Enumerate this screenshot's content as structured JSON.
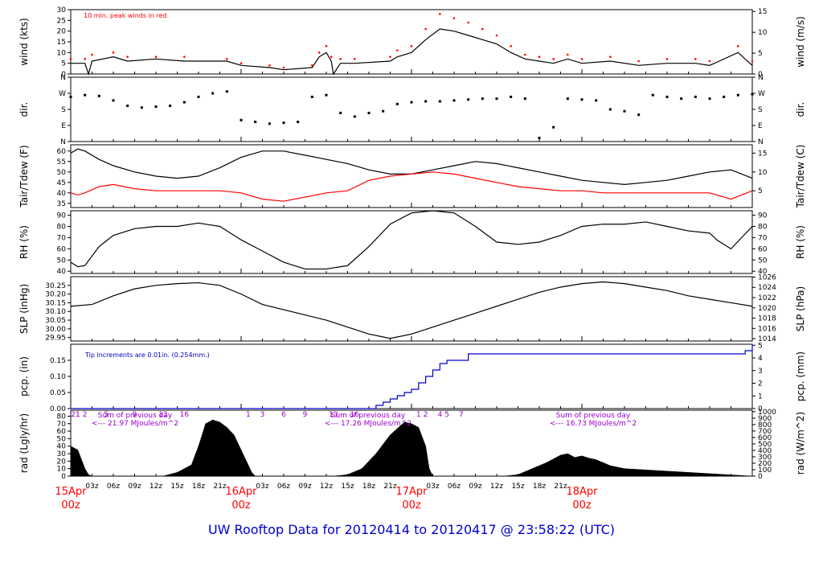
{
  "footer": {
    "title_prefix": "UW Rooftop Data for",
    "start": "20120414",
    "to": "to",
    "end": "20120417",
    "at": "@",
    "time": "23:58:22",
    "tz": "(UTC)"
  },
  "colors": {
    "peak": "#ff0000",
    "dew": "#ff0000",
    "precip": "#0000cc",
    "solar_note": "#9900cc",
    "day_label": "#ff0000",
    "title": "#0000cc"
  },
  "chart_data": [
    {
      "type": "line",
      "id": "wind",
      "ylabel": "wind (kts)",
      "ylabel_right": "wind (m/s)",
      "annotation": "10 min. peak winds in red",
      "yticks_left": [
        0,
        5,
        10,
        15,
        20,
        25,
        30
      ],
      "yticks_right": [
        0,
        5,
        10,
        15
      ],
      "ylim": [
        0,
        30
      ],
      "x_hours": [
        0,
        2,
        2.5,
        3,
        6,
        8,
        12,
        16,
        22,
        24,
        28,
        30,
        34,
        35,
        36,
        36.7,
        37,
        38,
        40,
        45,
        46,
        48,
        50,
        52,
        54,
        56,
        58,
        60,
        62,
        64,
        66,
        68,
        70,
        72,
        76,
        80,
        84,
        88,
        90,
        94,
        96
      ],
      "series": [
        {
          "name": "wind",
          "values": [
            5,
            5,
            0,
            6,
            8,
            6,
            7,
            6,
            6,
            4,
            3,
            2,
            3,
            8,
            10,
            6,
            0,
            5,
            5,
            6,
            8,
            10,
            16,
            21,
            20,
            18,
            16,
            14,
            10,
            7,
            6,
            5,
            7,
            5,
            6,
            4,
            5,
            5,
            4,
            10,
            4
          ]
        },
        {
          "name": "10 min. peak",
          "values": [
            7,
            7,
            0,
            9,
            10,
            8,
            8,
            8,
            7,
            5,
            4,
            3,
            4,
            10,
            13,
            8,
            0,
            7,
            7,
            8,
            11,
            13,
            21,
            28,
            26,
            24,
            21,
            18,
            13,
            9,
            8,
            7,
            9,
            7,
            8,
            6,
            7,
            7,
            6,
            13,
            6
          ]
        }
      ]
    },
    {
      "type": "scatter",
      "id": "dir",
      "ylabel": "dir.",
      "ylabel_right": "dir.",
      "ytick_labels": [
        "N",
        "W",
        "S",
        "E",
        "N"
      ],
      "ylim_deg": [
        0,
        360
      ],
      "x_hours": [
        0,
        2,
        4,
        6,
        8,
        10,
        12,
        14,
        16,
        18,
        20,
        22,
        24,
        26,
        28,
        30,
        32,
        34,
        36,
        38,
        40,
        42,
        44,
        46,
        48,
        50,
        52,
        54,
        56,
        58,
        60,
        62,
        64,
        66,
        68,
        70,
        72,
        74,
        76,
        78,
        80,
        82,
        84,
        86,
        88,
        90,
        92,
        94,
        96
      ],
      "values": [
        250,
        260,
        255,
        230,
        200,
        190,
        195,
        200,
        220,
        250,
        270,
        280,
        120,
        110,
        100,
        105,
        110,
        250,
        260,
        160,
        140,
        160,
        170,
        210,
        220,
        225,
        225,
        230,
        235,
        240,
        240,
        250,
        240,
        20,
        80,
        240,
        235,
        230,
        180,
        170,
        150,
        260,
        250,
        240,
        250,
        240,
        250,
        260,
        265
      ]
    },
    {
      "type": "line",
      "id": "temp",
      "ylabel": "Tair/Tdew (F)",
      "ylabel_right": "Tair/Tdew (C)",
      "yticks_left": [
        35,
        40,
        45,
        50,
        55,
        60
      ],
      "yticks_right": [
        5,
        10,
        15
      ],
      "ylim": [
        33,
        63
      ],
      "x_hours": [
        0,
        1,
        2,
        4,
        6,
        9,
        12,
        15,
        18,
        21,
        24,
        27,
        30,
        33,
        36,
        39,
        42,
        45,
        48,
        51,
        54,
        57,
        60,
        63,
        66,
        69,
        72,
        75,
        78,
        81,
        84,
        87,
        90,
        93,
        96
      ],
      "series": [
        {
          "name": "Tair",
          "values": [
            59,
            61,
            60,
            56,
            53,
            50,
            48,
            47,
            48,
            52,
            57,
            60,
            60,
            58,
            56,
            54,
            51,
            49,
            49,
            51,
            53,
            55,
            54,
            52,
            50,
            48,
            46,
            45,
            44,
            45,
            46,
            48,
            50,
            51,
            47
          ]
        },
        {
          "name": "Tdew",
          "values": [
            40,
            39,
            40,
            43,
            44,
            42,
            41,
            41,
            41,
            41,
            40,
            37,
            36,
            38,
            40,
            41,
            46,
            48,
            49,
            50,
            49,
            47,
            45,
            43,
            42,
            41,
            41,
            40,
            40,
            40,
            40,
            40,
            40,
            37,
            41
          ]
        }
      ]
    },
    {
      "type": "line",
      "id": "rh",
      "ylabel": "RH (%)",
      "ylabel_right": "RH (%)",
      "yticks_left": [
        40,
        50,
        60,
        70,
        80,
        90
      ],
      "yticks_right": [
        40,
        50,
        60,
        70,
        80,
        90
      ],
      "ylim": [
        38,
        94
      ],
      "x_hours": [
        0,
        1,
        2,
        4,
        6,
        9,
        12,
        15,
        18,
        21,
        24,
        27,
        30,
        33,
        36,
        39,
        42,
        45,
        48,
        51,
        54,
        57,
        60,
        63,
        66,
        69,
        72,
        75,
        78,
        81,
        84,
        87,
        90,
        91,
        93,
        96
      ],
      "series": [
        {
          "name": "RH",
          "values": [
            48,
            44,
            45,
            62,
            72,
            78,
            80,
            80,
            83,
            80,
            68,
            58,
            48,
            42,
            42,
            45,
            62,
            82,
            92,
            94,
            92,
            80,
            66,
            64,
            66,
            72,
            80,
            82,
            82,
            84,
            80,
            76,
            74,
            68,
            60,
            80
          ]
        }
      ]
    },
    {
      "type": "line",
      "id": "slp",
      "ylabel": "SLP (inHg)",
      "ylabel_right": "SLP (hPa)",
      "yticks_left": [
        29.95,
        30.0,
        30.05,
        30.1,
        30.15,
        30.2,
        30.25
      ],
      "yticks_right": [
        1014,
        1016,
        1018,
        1020,
        1022,
        1024,
        1026
      ],
      "ylim": [
        29.93,
        30.3
      ],
      "x_hours": [
        0,
        3,
        6,
        9,
        12,
        15,
        18,
        21,
        24,
        27,
        30,
        33,
        36,
        39,
        42,
        45,
        48,
        51,
        54,
        57,
        60,
        63,
        66,
        69,
        72,
        75,
        78,
        81,
        84,
        87,
        90,
        93,
        96
      ],
      "series": [
        {
          "name": "SLP",
          "values": [
            30.13,
            30.14,
            30.19,
            30.23,
            30.25,
            30.26,
            30.265,
            30.25,
            30.2,
            30.14,
            30.11,
            30.08,
            30.05,
            30.01,
            29.97,
            29.945,
            29.97,
            30.01,
            30.05,
            30.09,
            30.13,
            30.17,
            30.21,
            30.24,
            30.26,
            30.27,
            30.26,
            30.24,
            30.22,
            30.19,
            30.17,
            30.15,
            30.13
          ]
        }
      ]
    },
    {
      "type": "line",
      "id": "pcp",
      "ylabel": "pcp. (in)",
      "ylabel_right": "pcp. (mm)",
      "annotation": "Tip increments are 0.01in. (0.254mm.)",
      "yticks_left": [
        0.0,
        0.05,
        0.1,
        0.15
      ],
      "yticks_right": [
        0,
        1,
        2,
        3,
        4,
        5
      ],
      "ylim": [
        0,
        0.2
      ],
      "x_hours": [
        0,
        42,
        43,
        44,
        45,
        46,
        47,
        48,
        49,
        50,
        51,
        52,
        53,
        54,
        55,
        56,
        57,
        58,
        59,
        60,
        90,
        92,
        93,
        94,
        95,
        96
      ],
      "series": [
        {
          "name": "pcp",
          "values": [
            0,
            0,
            0.01,
            0.02,
            0.03,
            0.04,
            0.05,
            0.06,
            0.08,
            0.1,
            0.12,
            0.14,
            0.15,
            0.15,
            0.15,
            0.17,
            0.17,
            0.17,
            0.17,
            0.17,
            0.17,
            0.17,
            0.17,
            0.17,
            0.18,
            0.2
          ]
        }
      ]
    },
    {
      "type": "area",
      "id": "rad",
      "ylabel": "rad (Lgly/hr)",
      "ylabel_right": "rad (W/m^2)",
      "yticks_left": [
        0,
        10,
        20,
        30,
        40,
        50,
        60,
        70,
        80
      ],
      "yticks_right": [
        0,
        100,
        200,
        300,
        400,
        500,
        600,
        700,
        800,
        900,
        1000
      ],
      "ylim": [
        0,
        88
      ],
      "x_hours": [
        0,
        1,
        2,
        2.5,
        3,
        13,
        15,
        17,
        18,
        19,
        20,
        21,
        22,
        23,
        24,
        25,
        25.5,
        26,
        37,
        39,
        41,
        43,
        45,
        47,
        48,
        49,
        50,
        50.5,
        51,
        61,
        63,
        65,
        67,
        69,
        70,
        71,
        72,
        73,
        74,
        75,
        76,
        77,
        78,
        96
      ],
      "series": [
        {
          "name": "rad",
          "values": [
            40,
            35,
            10,
            2,
            0,
            0,
            5,
            15,
            40,
            70,
            75,
            72,
            65,
            55,
            35,
            15,
            5,
            0,
            0,
            2,
            10,
            30,
            55,
            72,
            70,
            65,
            40,
            10,
            0,
            0,
            2,
            10,
            18,
            28,
            30,
            25,
            27,
            24,
            22,
            18,
            14,
            12,
            10,
            0
          ]
        }
      ],
      "hour_marks": [
        {
          "label": "21",
          "h": -3
        },
        {
          "label": "1",
          "h": 1
        },
        {
          "label": "2",
          "h": 2
        },
        {
          "label": "5",
          "h": 5
        },
        {
          "label": "9",
          "h": 9
        },
        {
          "label": "13",
          "h": 13
        },
        {
          "label": "16",
          "h": 16
        },
        {
          "label": "1",
          "h": 1
        },
        {
          "label": "3",
          "h": 3
        },
        {
          "label": "6",
          "h": 6
        },
        {
          "label": "9",
          "h": 9
        },
        {
          "label": "13",
          "h": 13
        },
        {
          "label": "16",
          "h": 16
        },
        {
          "label": "1",
          "h": 1
        },
        {
          "label": "2",
          "h": 2
        },
        {
          "label": "4",
          "h": 4
        },
        {
          "label": "5",
          "h": 5
        },
        {
          "label": "7",
          "h": 7
        }
      ],
      "notes": [
        {
          "line1": "Sum of previous day",
          "line2": "<--- 21.97 MJoules/m^2"
        },
        {
          "line1": "Sum of previous day",
          "line2": "<--- 17.26 MJoules/m^2"
        },
        {
          "line1": "Sum of previous day",
          "line2": "<--- 16.73 MJoules/m^2"
        }
      ]
    }
  ],
  "xaxis": {
    "tick_labels": [
      "03z",
      "06z",
      "09z",
      "12z",
      "15z",
      "18z",
      "21z",
      "03z",
      "06z",
      "09z",
      "12z",
      "15z",
      "18z",
      "21z",
      "03z",
      "06z",
      "09z",
      "12z",
      "15z",
      "18z",
      "21z"
    ],
    "day_labels": [
      {
        "date": "15Apr",
        "time": "00z"
      },
      {
        "date": "16Apr",
        "time": "00z"
      },
      {
        "date": "17Apr",
        "time": "00z"
      },
      {
        "date": "18Apr",
        "time": "00z"
      }
    ]
  }
}
